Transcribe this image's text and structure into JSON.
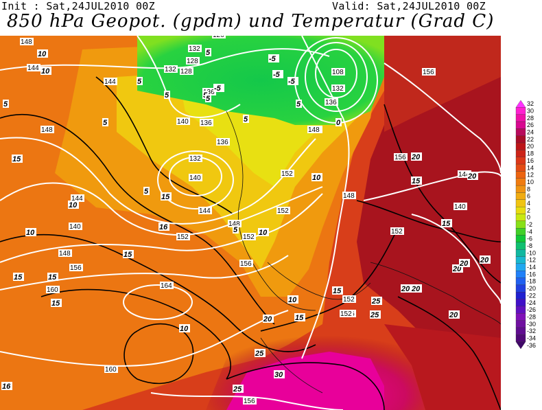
{
  "header": {
    "init": "Init : Sat,24JUL2010 00Z",
    "valid": "Valid: Sat,24JUL2010 00Z",
    "title": "850 hPa Geopot. (gpdm) und Temperatur (Grad C)"
  },
  "colors": {
    "hot_magenta": "#e8007a",
    "dark_red": "#a8101c",
    "red_orange": "#d2391a",
    "orange": "#ec7a12",
    "amber": "#f0a20a",
    "yellow": "#efd60c",
    "green": "#22d040",
    "white_contours": "#ffffff",
    "black_isotherms": "#000000"
  },
  "legend": {
    "labels": [
      "32",
      "30",
      "28",
      "26",
      "24",
      "22",
      "20",
      "18",
      "16",
      "14",
      "12",
      "10",
      "8",
      "6",
      "4",
      "2",
      "0",
      "-2",
      "-4",
      "-6",
      "-8",
      "-10",
      "-12",
      "-14",
      "-16",
      "-18",
      "-20",
      "-22",
      "-24",
      "-26",
      "-28",
      "-30",
      "-32",
      "-34",
      "-36"
    ],
    "colors": [
      "#ff30ff",
      "#ff20d0",
      "#f010a8",
      "#d80890",
      "#b80a5c",
      "#a80c28",
      "#bc1418",
      "#cc2418",
      "#dc3818",
      "#e44c14",
      "#ec6410",
      "#f07c10",
      "#f09412",
      "#f0ac12",
      "#f0c412",
      "#e8dc10",
      "#c8e810",
      "#88e018",
      "#40d028",
      "#10c838",
      "#10c070",
      "#10b8a0",
      "#18b8d0",
      "#20a8f0",
      "#2080f8",
      "#2060f0",
      "#2040e0",
      "#2020d0",
      "#4010c8",
      "#6010c0",
      "#8010b8",
      "#7010a0",
      "#600c90",
      "#500878",
      "#400868"
    ]
  },
  "geopotential_labels": [
    "148",
    "144",
    "144",
    "128",
    "132",
    "126",
    "128",
    "132",
    "136",
    "140",
    "136",
    "136",
    "132",
    "140",
    "144",
    "140",
    "144",
    "148",
    "148",
    "152",
    "148",
    "152",
    "152",
    "152",
    "156",
    "160",
    "164",
    "160",
    "156",
    "156",
    "156",
    "148",
    "148",
    "144",
    "140",
    "156",
    "156",
    "108",
    "132",
    "136",
    "148",
    "148",
    "152",
    "152",
    "156",
    "152"
  ],
  "temperature_labels": [
    "10",
    "10",
    "15",
    "10",
    "10",
    "15",
    "15",
    "15",
    "10",
    "10",
    "15",
    "15",
    "20",
    "20",
    "25",
    "20",
    "25",
    "30",
    "25",
    "16",
    "16",
    "20",
    "20",
    "20",
    "20",
    "20",
    "20",
    "25",
    "15",
    "15",
    "15",
    "5",
    "5",
    "5",
    "5",
    "5",
    "5",
    "5",
    "5",
    "5",
    "5",
    "10",
    "10",
    "15",
    "5",
    "0",
    "-5",
    "-5",
    "-5",
    "-5"
  ]
}
